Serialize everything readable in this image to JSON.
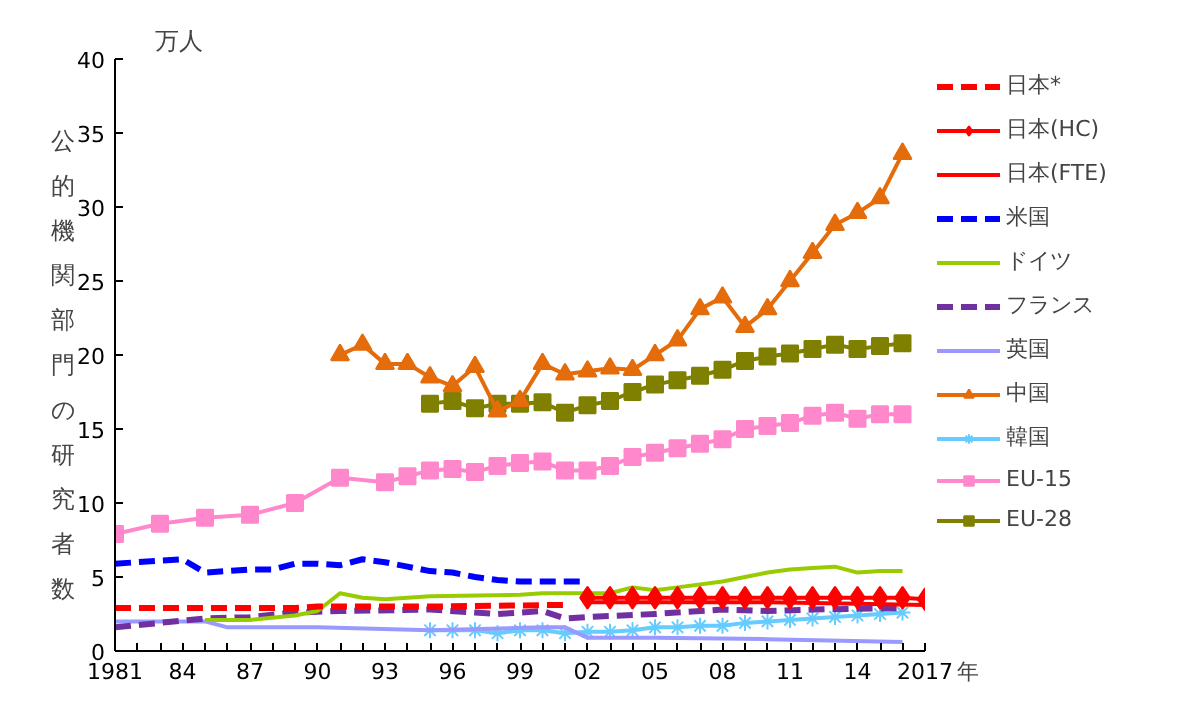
{
  "chart_data": {
    "type": "line",
    "xlabel": "年",
    "ylabel": "公的機関部門の研究者数",
    "annotations": [
      "万人"
    ],
    "xlim": [
      1981,
      2017
    ],
    "ylim": [
      0,
      40
    ],
    "yticks": [
      0,
      5,
      10,
      15,
      20,
      25,
      30,
      35,
      40
    ],
    "xticks": [
      1981,
      {
        "value": 1982,
        "label": null
      },
      {
        "value": 1983,
        "label": null
      },
      {
        "value": 1984,
        "label": "84"
      },
      {
        "value": 1985,
        "label": null
      },
      {
        "value": 1986,
        "label": null
      },
      {
        "value": 1987,
        "label": "87"
      },
      {
        "value": 1988,
        "label": null
      },
      {
        "value": 1989,
        "label": null
      },
      {
        "value": 1990,
        "label": "90"
      },
      {
        "value": 1991,
        "label": null
      },
      {
        "value": 1992,
        "label": null
      },
      {
        "value": 1993,
        "label": "93"
      },
      {
        "value": 1994,
        "label": null
      },
      {
        "value": 1995,
        "label": null
      },
      {
        "value": 1996,
        "label": "96"
      },
      {
        "value": 1997,
        "label": null
      },
      {
        "value": 1998,
        "label": null
      },
      {
        "value": 1999,
        "label": "99"
      },
      {
        "value": 2000,
        "label": null
      },
      {
        "value": 2001,
        "label": null
      },
      {
        "value": 2002,
        "label": "02"
      },
      {
        "value": 2003,
        "label": null
      },
      {
        "value": 2004,
        "label": null
      },
      {
        "value": 2005,
        "label": "05"
      },
      {
        "value": 2006,
        "label": null
      },
      {
        "value": 2007,
        "label": null
      },
      {
        "value": 2008,
        "label": "08"
      },
      {
        "value": 2009,
        "label": null
      },
      {
        "value": 2010,
        "label": null
      },
      {
        "value": 2011,
        "label": "11"
      },
      {
        "value": 2012,
        "label": null
      },
      {
        "value": 2013,
        "label": null
      },
      {
        "value": 2014,
        "label": "14"
      },
      {
        "value": 2015,
        "label": null
      },
      {
        "value": 2016,
        "label": null
      },
      2017
    ],
    "grid": false,
    "legend": "right",
    "series": [
      {
        "name": "日本*",
        "color": "#ff0000",
        "line_style": "dashed",
        "marker": "none",
        "x": [
          1981,
          1985,
          1989,
          1990,
          1995,
          2000,
          2001
        ],
        "values": [
          2.9,
          2.9,
          2.9,
          3.0,
          3.0,
          3.1,
          3.1
        ]
      },
      {
        "name": "日本(HC)",
        "color": "#ff0000",
        "line_style": "solid",
        "marker": "diamond",
        "x": [
          2002,
          2003,
          2004,
          2005,
          2006,
          2007,
          2008,
          2009,
          2010,
          2011,
          2012,
          2013,
          2014,
          2015,
          2016,
          2017
        ],
        "values": [
          3.6,
          3.6,
          3.6,
          3.6,
          3.6,
          3.6,
          3.6,
          3.6,
          3.6,
          3.6,
          3.6,
          3.6,
          3.6,
          3.6,
          3.6,
          3.5
        ]
      },
      {
        "name": "日本(FTE)",
        "color": "#ff0000",
        "line_style": "solid",
        "marker": "none",
        "x": [
          2002,
          2005,
          2010,
          2014,
          2017
        ],
        "values": [
          3.3,
          3.3,
          3.3,
          3.2,
          3.1
        ]
      },
      {
        "name": "米国",
        "color": "#0000ff",
        "line_style": "dashed",
        "marker": "none",
        "x": [
          1981,
          1983,
          1984,
          1985,
          1986,
          1987,
          1988,
          1989,
          1990,
          1991,
          1992,
          1993,
          1994,
          1995,
          1996,
          1997,
          1998,
          1999,
          2000,
          2001,
          2002
        ],
        "values": [
          5.9,
          6.1,
          6.2,
          5.3,
          5.4,
          5.5,
          5.5,
          5.9,
          5.9,
          5.8,
          6.2,
          6.0,
          5.7,
          5.4,
          5.3,
          5.0,
          4.8,
          4.7,
          4.7,
          4.7,
          4.7
        ]
      },
      {
        "name": "ドイツ",
        "color": "#99cc00",
        "line_style": "solid",
        "marker": "none",
        "x": [
          1985,
          1987,
          1989,
          1990,
          1991,
          1992,
          1993,
          1995,
          1999,
          2000,
          2003,
          2004,
          2005,
          2006,
          2008,
          2009,
          2010,
          2011,
          2012,
          2013,
          2014,
          2015,
          2016
        ],
        "values": [
          2.1,
          2.1,
          2.4,
          2.7,
          3.9,
          3.6,
          3.5,
          3.7,
          3.8,
          3.9,
          3.9,
          4.3,
          4.1,
          4.3,
          4.7,
          5.0,
          5.3,
          5.5,
          5.6,
          5.7,
          5.3,
          5.4,
          5.4
        ]
      },
      {
        "name": "フランス",
        "color": "#7030a0",
        "line_style": "dashed",
        "marker": "none",
        "x": [
          1981,
          1985,
          1987,
          1989,
          1991,
          1995,
          1997,
          1998,
          2000,
          2001,
          2002,
          2005,
          2008,
          2010,
          2012,
          2016
        ],
        "values": [
          1.6,
          2.2,
          2.3,
          2.6,
          2.7,
          2.8,
          2.6,
          2.5,
          2.7,
          2.2,
          2.3,
          2.5,
          2.8,
          2.7,
          2.8,
          2.9
        ]
      },
      {
        "name": "英国",
        "color": "#9999ff",
        "line_style": "solid",
        "marker": "none",
        "x": [
          1981,
          1984,
          1985,
          1986,
          1990,
          1995,
          2000,
          2001,
          2002,
          2005,
          2010,
          2016
        ],
        "values": [
          2.0,
          2.0,
          2.0,
          1.6,
          1.6,
          1.4,
          1.6,
          1.6,
          0.9,
          0.9,
          0.8,
          0.6
        ]
      },
      {
        "name": "中国",
        "color": "#e46c0a",
        "line_style": "solid",
        "marker": "triangle",
        "x": [
          1991,
          1992,
          1993,
          1994,
          1995,
          1996,
          1997,
          1998,
          1999,
          2000,
          2001,
          2002,
          2003,
          2004,
          2005,
          2006,
          2007,
          2008,
          2009,
          2010,
          2011,
          2012,
          2013,
          2014,
          2015,
          2016
        ],
        "values": [
          20.0,
          20.7,
          19.4,
          19.4,
          18.5,
          17.9,
          19.2,
          16.2,
          16.9,
          19.4,
          18.7,
          18.9,
          19.1,
          19.0,
          20.0,
          21.0,
          23.1,
          23.9,
          21.9,
          23.1,
          25.0,
          26.9,
          28.8,
          29.6,
          30.6,
          33.6
        ]
      },
      {
        "name": "韓国",
        "color": "#66ccff",
        "line_style": "solid",
        "marker": "cross",
        "x": [
          1995,
          1996,
          1997,
          1998,
          1999,
          2000,
          2001,
          2002,
          2003,
          2004,
          2005,
          2006,
          2007,
          2008,
          2009,
          2010,
          2011,
          2012,
          2013,
          2014,
          2015,
          2016
        ],
        "values": [
          1.4,
          1.4,
          1.4,
          1.2,
          1.4,
          1.4,
          1.2,
          1.3,
          1.3,
          1.4,
          1.6,
          1.6,
          1.7,
          1.7,
          1.9,
          2.0,
          2.1,
          2.2,
          2.3,
          2.4,
          2.5,
          2.6
        ]
      },
      {
        "name": "EU-15",
        "color": "#ff88cc",
        "line_style": "solid",
        "marker": "square",
        "x": [
          1981,
          1983,
          1985,
          1987,
          1989,
          1991,
          1993,
          1994,
          1995,
          1996,
          1997,
          1998,
          1999,
          2000,
          2001,
          2002,
          2003,
          2004,
          2005,
          2006,
          2007,
          2008,
          2009,
          2010,
          2011,
          2012,
          2013,
          2014,
          2015,
          2016
        ],
        "values": [
          7.9,
          8.6,
          9.0,
          9.2,
          10.0,
          11.7,
          11.4,
          11.8,
          12.2,
          12.3,
          12.1,
          12.5,
          12.7,
          12.8,
          12.2,
          12.2,
          12.5,
          13.1,
          13.4,
          13.7,
          14.0,
          14.3,
          15.0,
          15.2,
          15.4,
          15.9,
          16.1,
          15.7,
          16.0,
          16.0
        ]
      },
      {
        "name": "EU-28",
        "color": "#808000",
        "line_style": "solid",
        "marker": "square",
        "x": [
          1995,
          1996,
          1997,
          1998,
          1999,
          2000,
          2001,
          2002,
          2003,
          2004,
          2005,
          2006,
          2007,
          2008,
          2009,
          2010,
          2011,
          2012,
          2013,
          2014,
          2015,
          2016
        ],
        "values": [
          16.7,
          16.9,
          16.4,
          16.7,
          16.7,
          16.8,
          16.1,
          16.6,
          16.9,
          17.5,
          18.0,
          18.3,
          18.6,
          19.0,
          19.6,
          19.9,
          20.1,
          20.4,
          20.7,
          20.4,
          20.6,
          20.8
        ]
      }
    ]
  }
}
